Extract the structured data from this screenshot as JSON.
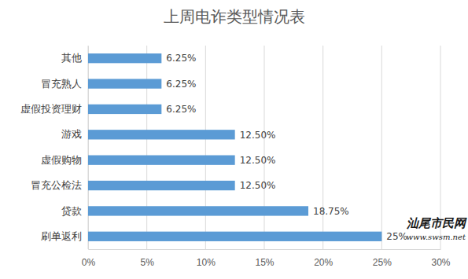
{
  "chart_data": {
    "type": "bar",
    "title": "上周电诈类型情况表",
    "orientation": "horizontal",
    "categories": [
      "其他",
      "冒充熟人",
      "虚假投资理财",
      "游戏",
      "虚假购物",
      "冒充公检法",
      "贷款",
      "刷单返利"
    ],
    "values": [
      6.25,
      6.25,
      6.25,
      12.5,
      12.5,
      12.5,
      18.75,
      25
    ],
    "value_labels": [
      "6.25%",
      "6.25%",
      "6.25%",
      "12.50%",
      "12.50%",
      "12.50%",
      "18.75%",
      "25%"
    ],
    "color": "#5b9bd5",
    "data_labels": true,
    "grid": true,
    "xlim": [
      0,
      30
    ],
    "xticks": [
      {
        "value": 0,
        "label": "0%"
      },
      {
        "value": 5,
        "label": "5%"
      },
      {
        "value": 10,
        "label": "10%"
      },
      {
        "value": 15,
        "label": "15%"
      },
      {
        "value": 20,
        "label": "20%"
      },
      {
        "value": 25,
        "label": "25%"
      },
      {
        "value": 30,
        "label": "30%"
      }
    ],
    "annotations": [
      "汕尾市民网",
      "www.swsm.net"
    ]
  }
}
